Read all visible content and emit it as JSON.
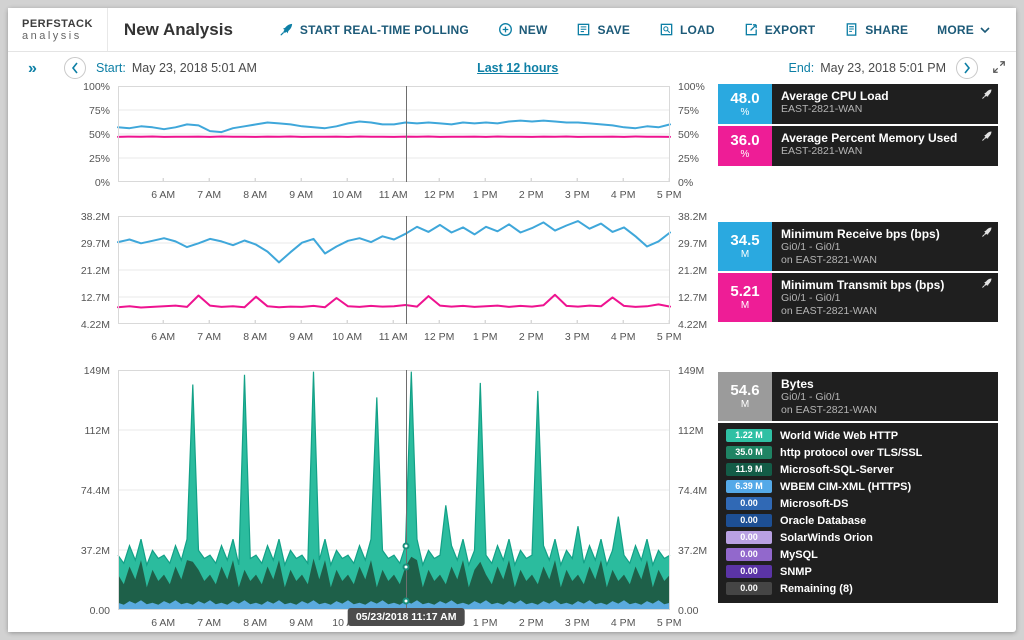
{
  "header": {
    "logo": {
      "line1": "PERFSTACK",
      "line2": "analysis"
    },
    "title": "New Analysis",
    "buttons": [
      {
        "id": "start-real-time-polling",
        "icon": "rocket-icon",
        "label": "START REAL-TIME POLLING"
      },
      {
        "id": "new",
        "icon": "plus-circle-icon",
        "label": "NEW"
      },
      {
        "id": "save",
        "icon": "save-icon",
        "label": "SAVE"
      },
      {
        "id": "load",
        "icon": "load-icon",
        "label": "LOAD"
      },
      {
        "id": "export",
        "icon": "export-icon",
        "label": "EXPORT"
      },
      {
        "id": "share",
        "icon": "share-icon",
        "label": "SHARE"
      },
      {
        "id": "more",
        "icon": "",
        "label": "MORE",
        "chevron": true
      }
    ]
  },
  "timebar": {
    "start_label": "Start:",
    "start_value": "May 23, 2018 5:01 AM",
    "range_label": "Last 12 hours",
    "end_label": "End:",
    "end_value": "May 23, 2018 5:01 PM"
  },
  "sidebar": {
    "collapse_glyph": "»"
  },
  "crosshair": {
    "frac": 0.522,
    "tooltip": "05/23/2018 11:17 AM"
  },
  "x_ticks": [
    "6 AM",
    "7 AM",
    "8 AM",
    "9 AM",
    "10 AM",
    "11 AM",
    "12 PM",
    "1 PM",
    "2 PM",
    "3 PM",
    "4 PM",
    "5 PM"
  ],
  "chart_data": [
    {
      "id": "chart-percent",
      "type": "line",
      "ymin": 0,
      "ymax": 100,
      "yticks": [
        "100%",
        "75%",
        "50%",
        "25%",
        "0%"
      ],
      "series": [
        {
          "name": "Average CPU Load",
          "color": "#3fa7da",
          "values": [
            57,
            56,
            58,
            57,
            55,
            57,
            60,
            59,
            53,
            52,
            56,
            58,
            60,
            62,
            61,
            60,
            58,
            57,
            56,
            58,
            61,
            63,
            62,
            60,
            60,
            62,
            61,
            62,
            61,
            60,
            62,
            61,
            62,
            61,
            63,
            64,
            63,
            64,
            63,
            62,
            62,
            61,
            60,
            59,
            57,
            56,
            58,
            57,
            60
          ]
        },
        {
          "name": "Average Percent Memory Used",
          "color": "#ee1390",
          "values": [
            47,
            47.3,
            47.1,
            47.4,
            47,
            47.2,
            47.1,
            47.3,
            47,
            47.4,
            47.1,
            47.2,
            47,
            47.3,
            47.1,
            47.4,
            47,
            47.2,
            47.1,
            47.3,
            47,
            47.4,
            47.1,
            47.2,
            47,
            47.3,
            47.1,
            47.4,
            47,
            47.2,
            47.1,
            47.3,
            47,
            47.4,
            47.1,
            47.2,
            47,
            47.3,
            47.1,
            47.4,
            47,
            47.2,
            47.1,
            47.3,
            47,
            47.4,
            47.1,
            47.2,
            47
          ]
        }
      ]
    },
    {
      "id": "chart-bps",
      "type": "line",
      "ymin": 4.22,
      "ymax": 38.2,
      "yticks": [
        "38.2M",
        "29.7M",
        "21.2M",
        "12.7M",
        "4.22M"
      ],
      "series": [
        {
          "name": "Minimum Receive bps",
          "color": "#3fa7da",
          "values": [
            30,
            30.8,
            29.6,
            30.4,
            31.2,
            30.2,
            28.4,
            29.6,
            31,
            30.2,
            29,
            30.5,
            29.2,
            27,
            23.6,
            26.8,
            29.8,
            31,
            26.4,
            28.6,
            30.4,
            31.2,
            30,
            31.8,
            30.8,
            32.6,
            34.8,
            33.2,
            35.4,
            33,
            34.6,
            32.4,
            34.8,
            33.4,
            35.6,
            33,
            34.4,
            36.2,
            33.6,
            35.2,
            36.6,
            34.2,
            35.8,
            33.2,
            34.6,
            31.8,
            28.6,
            30.2,
            33
          ]
        },
        {
          "name": "Minimum Transmit bps",
          "color": "#ee1390",
          "values": [
            9.5,
            9.8,
            9.4,
            9.6,
            9.8,
            10,
            9.6,
            13.2,
            10,
            9.6,
            9.8,
            9.5,
            12.8,
            9.8,
            9.5,
            9.7,
            9.6,
            9.9,
            9.5,
            12.4,
            9.8,
            9.6,
            9.9,
            9.7,
            9.8,
            10.2,
            9.7,
            13,
            10,
            9.7,
            9.9,
            9.6,
            9.8,
            10,
            9.6,
            9.9,
            9.7,
            10.1,
            13.4,
            9.9,
            9.7,
            10,
            9.8,
            12.6,
            9.9,
            9.6,
            9.8,
            10.4,
            9.7
          ]
        }
      ]
    },
    {
      "id": "chart-bytes",
      "type": "area",
      "ymin": 0,
      "ymax": 149,
      "yticks": [
        "149M",
        "112M",
        "74.4M",
        "37.2M",
        "0.00"
      ],
      "series": [
        {
          "name": "World Wide Web HTTP",
          "color": "#2bbc9e",
          "stroke": "#13a187",
          "values": [
            34,
            29,
            40,
            31,
            44,
            28,
            37,
            32,
            34,
            29,
            40,
            31,
            44,
            140,
            37,
            32,
            34,
            29,
            40,
            31,
            44,
            28,
            146,
            32,
            34,
            29,
            40,
            31,
            44,
            28,
            37,
            32,
            34,
            29,
            148,
            31,
            44,
            28,
            37,
            32,
            34,
            29,
            40,
            31,
            44,
            132,
            37,
            32,
            34,
            29,
            40,
            148,
            44,
            28,
            37,
            32,
            34,
            65,
            40,
            31,
            44,
            28,
            37,
            141,
            34,
            29,
            40,
            31,
            44,
            28,
            37,
            32,
            34,
            136,
            40,
            31,
            44,
            28,
            37,
            32,
            52,
            29,
            40,
            31,
            44,
            28,
            37,
            58,
            34,
            29,
            40,
            31,
            44,
            28,
            37,
            32,
            34
          ]
        },
        {
          "name": "http protocol over TLS/SSL",
          "color": "#1e6049",
          "values": [
            22,
            16,
            27,
            19,
            31,
            14,
            25,
            18,
            22,
            16,
            27,
            19,
            31,
            30,
            25,
            18,
            22,
            16,
            27,
            19,
            31,
            14,
            25,
            18,
            22,
            16,
            27,
            19,
            31,
            14,
            25,
            18,
            22,
            16,
            32,
            19,
            31,
            14,
            25,
            18,
            22,
            16,
            27,
            19,
            31,
            14,
            25,
            18,
            22,
            16,
            27,
            33,
            31,
            14,
            25,
            18,
            22,
            16,
            27,
            19,
            31,
            14,
            25,
            30,
            22,
            16,
            27,
            19,
            31,
            14,
            25,
            18,
            22,
            16,
            27,
            19,
            31,
            14,
            25,
            18,
            22,
            16,
            27,
            19,
            31,
            14,
            25,
            18,
            22,
            16,
            27,
            19,
            31,
            14,
            25,
            18,
            22
          ]
        },
        {
          "name": "WBEM CIM-XML (HTTPS)",
          "color": "#5aaade",
          "values": [
            4.5,
            3.2,
            5.5,
            4,
            6,
            3.6,
            4.5,
            3.2,
            5.5,
            4,
            6,
            3.6,
            4.5,
            3.2,
            5.5,
            4,
            6,
            3.6,
            4.5,
            3.2,
            5.5,
            4,
            6,
            3.6,
            4.5,
            3.2,
            5.5,
            4,
            6,
            3.6,
            4.5,
            3.2,
            5.5,
            4,
            6,
            3.6,
            4.5,
            3.2,
            5.5,
            4,
            6,
            3.6,
            4.5,
            3.2,
            5.5,
            4,
            6,
            3.6,
            4.5,
            3.2,
            5.5,
            4,
            6,
            3.6,
            4.5,
            3.2,
            5.5,
            4,
            6,
            3.6,
            4.5,
            3.2,
            5.5,
            4,
            6,
            3.6,
            4.5,
            3.2,
            5.5,
            4,
            6,
            3.6,
            4.5,
            3.2,
            5.5,
            4,
            6,
            3.6,
            4.5,
            3.2,
            5.5,
            4,
            6,
            3.6,
            4.5,
            3.2,
            5.5,
            4,
            6,
            3.6,
            4.5,
            3.2,
            5.5,
            4,
            6,
            3.6,
            4.5
          ]
        }
      ]
    }
  ],
  "legend_panels": [
    {
      "rows": [
        {
          "value": "48.0",
          "unit": "%",
          "value_bg": "#2aa9e0",
          "title": "Average CPU Load",
          "subtitle": "EAST-2821-WAN",
          "rocket": true
        },
        {
          "value": "36.0",
          "unit": "%",
          "value_bg": "#ee1d96",
          "title": "Average Percent Memory Used",
          "subtitle": "EAST-2821-WAN",
          "rocket": true
        }
      ]
    },
    {
      "rows": [
        {
          "value": "34.5",
          "unit": "M",
          "value_bg": "#2aa9e0",
          "title": "Minimum Receive bps (bps)",
          "subtitle": "Gi0/1 - Gi0/1",
          "subtitle2": "on EAST-2821-WAN",
          "rocket": true
        },
        {
          "value": "5.21",
          "unit": "M",
          "value_bg": "#ee1d96",
          "title": "Minimum Transmit bps (bps)",
          "subtitle": "Gi0/1 - Gi0/1",
          "subtitle2": "on EAST-2821-WAN",
          "rocket": true
        }
      ]
    },
    {
      "rows": [
        {
          "value": "54.6",
          "unit": "M",
          "value_bg": "#9b9b9b",
          "title": "Bytes",
          "subtitle": "Gi0/1 - Gi0/1",
          "subtitle2": "on EAST-2821-WAN",
          "rocket": false
        }
      ],
      "items": [
        {
          "value": "1.22 M",
          "badge_bg": "#2fc0a4",
          "label": "World Wide Web HTTP"
        },
        {
          "value": "35.0 M",
          "badge_bg": "#1f8464",
          "label": "http protocol over TLS/SSL"
        },
        {
          "value": "11.9 M",
          "badge_bg": "#135c47",
          "label": "Microsoft-SQL-Server"
        },
        {
          "value": "6.39 M",
          "badge_bg": "#54a9e8",
          "label": "WBEM CIM-XML (HTTPS)"
        },
        {
          "value": "0.00",
          "badge_bg": "#3069b5",
          "label": "Microsoft-DS"
        },
        {
          "value": "0.00",
          "badge_bg": "#1d4f94",
          "label": "Oracle Database"
        },
        {
          "value": "0.00",
          "badge_bg": "#b9a1e3",
          "label": "SolarWinds Orion"
        },
        {
          "value": "0.00",
          "badge_bg": "#9268cc",
          "label": "MySQL"
        },
        {
          "value": "0.00",
          "badge_bg": "#5b34a6",
          "label": "SNMP"
        },
        {
          "value": "0.00",
          "badge_bg": "#454545",
          "label": "Remaining (8)"
        }
      ]
    }
  ]
}
